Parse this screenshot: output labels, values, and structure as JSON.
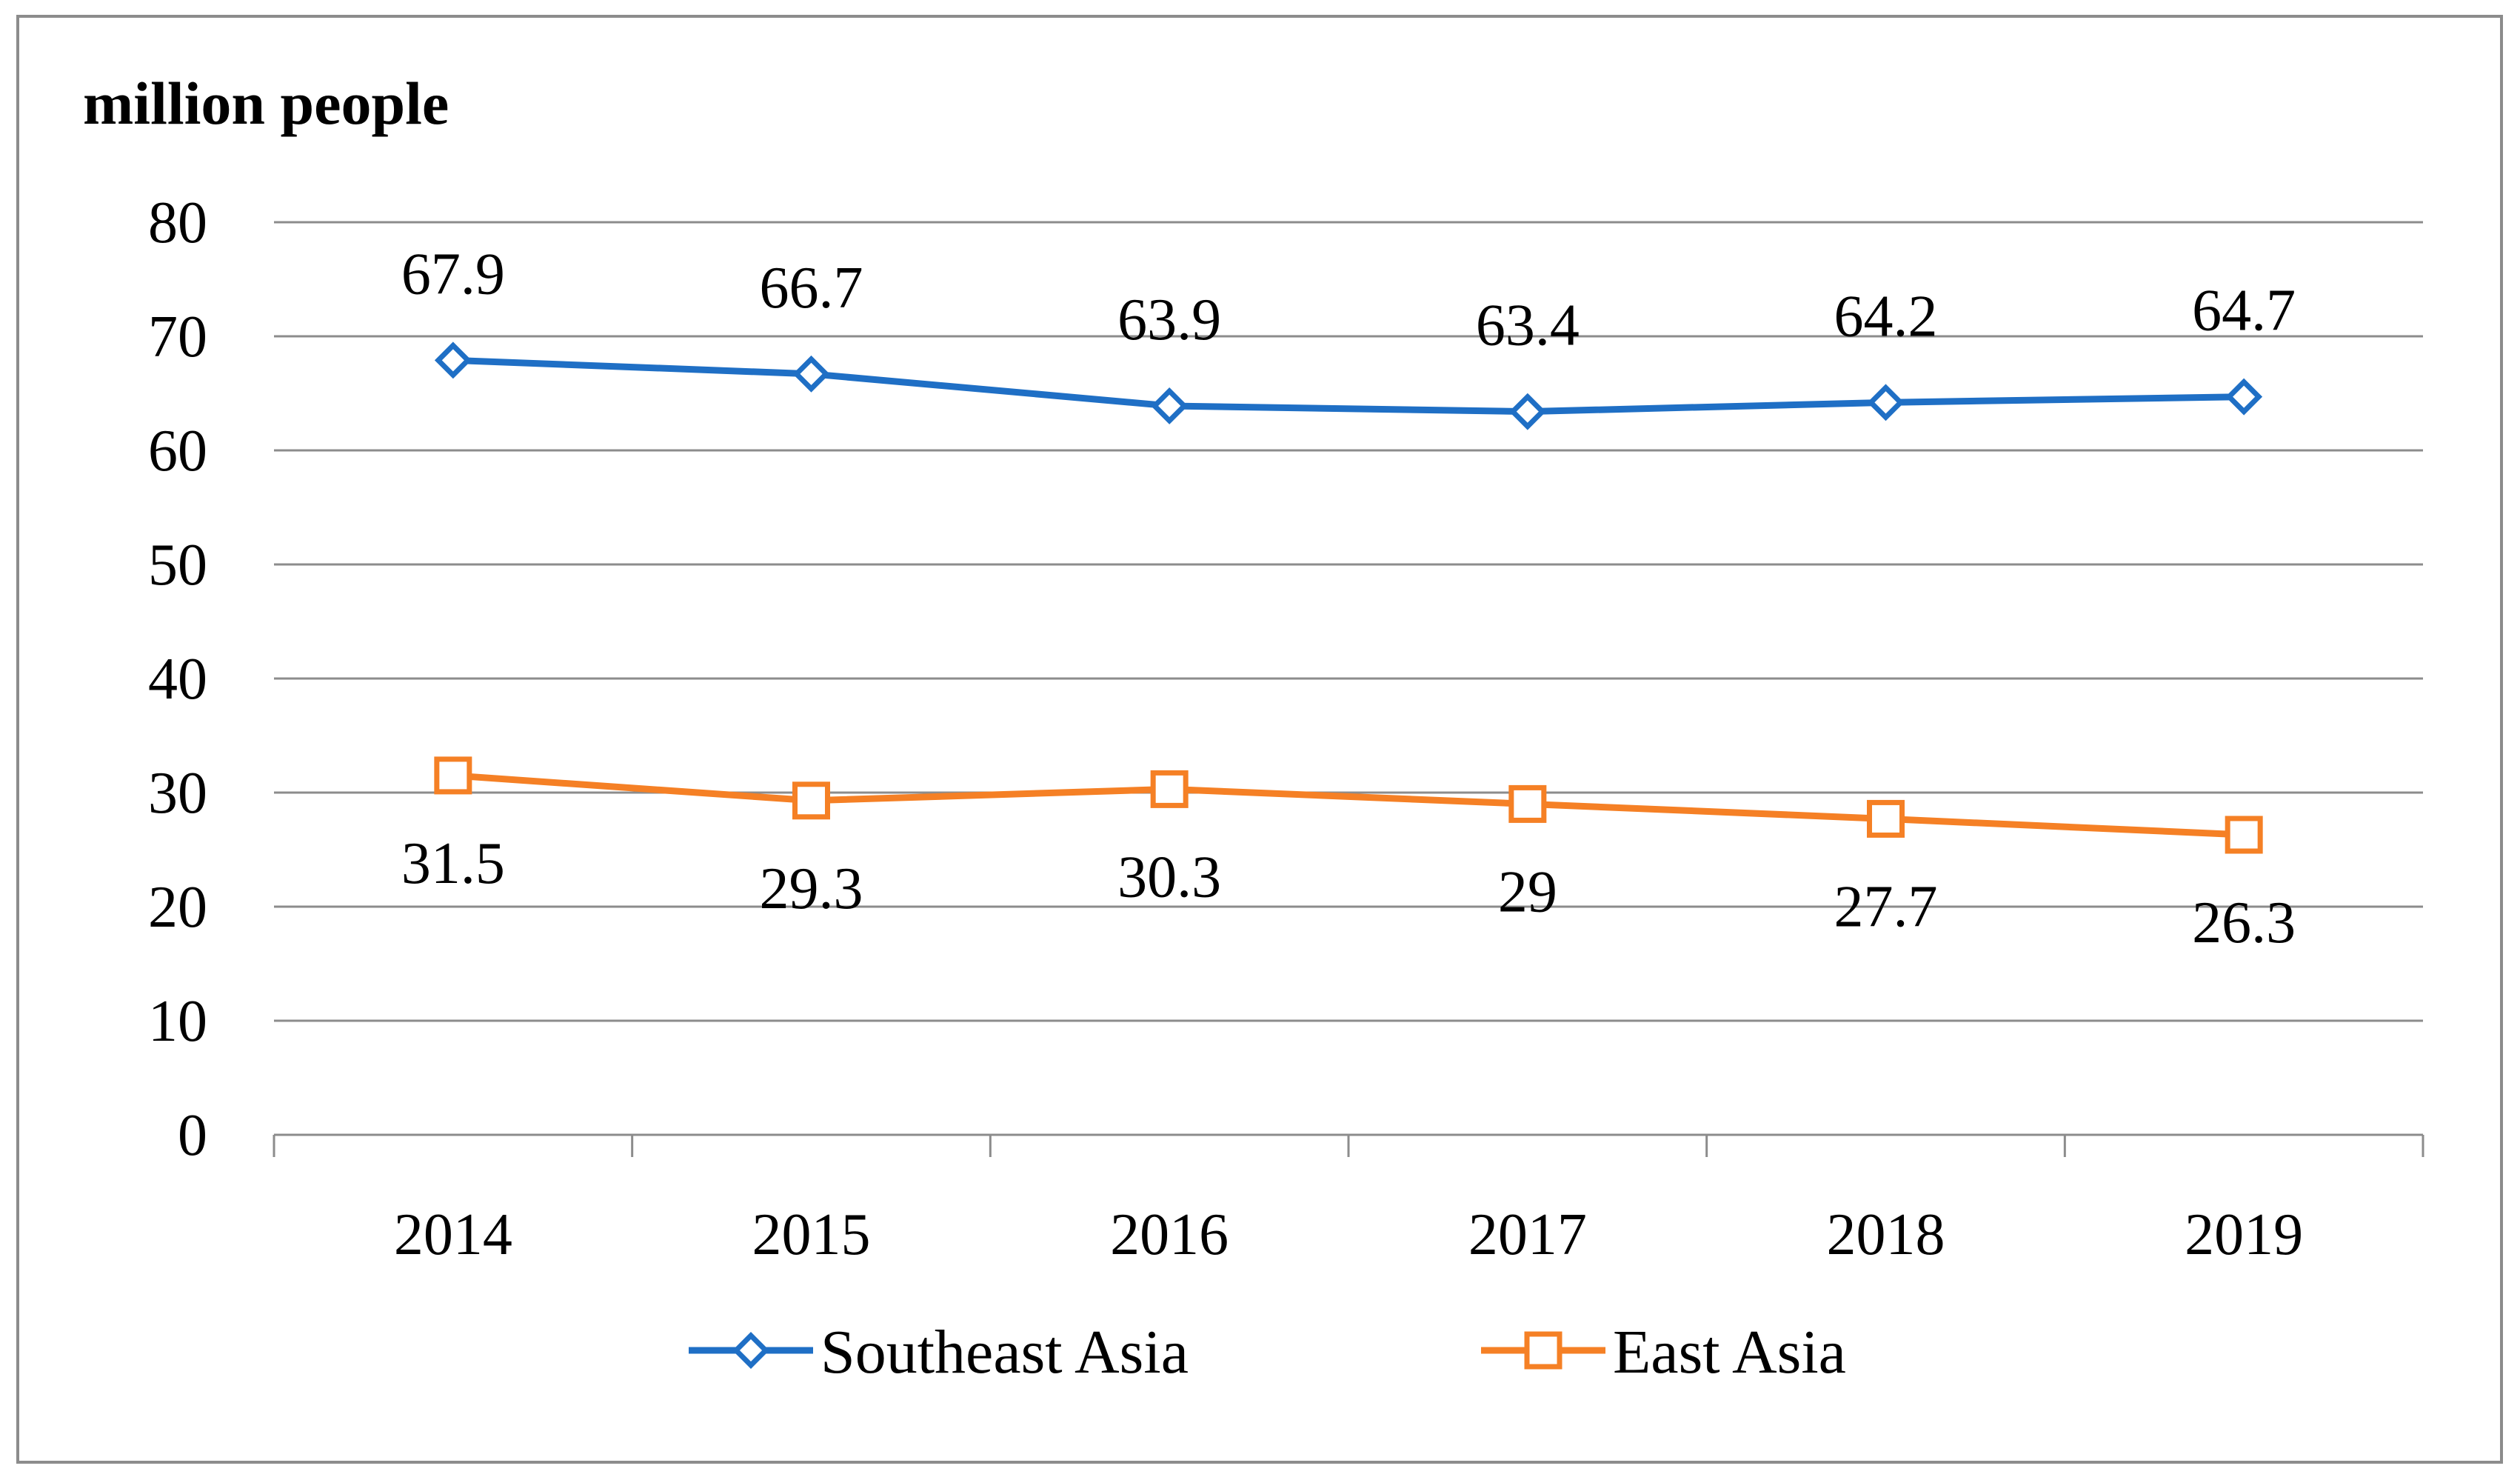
{
  "chart_data": {
    "type": "line",
    "title": "",
    "xlabel": "",
    "ylabel": "million people",
    "categories": [
      "2014",
      "2015",
      "2016",
      "2017",
      "2018",
      "2019"
    ],
    "ylim": [
      0,
      80
    ],
    "yticks": [
      "0",
      "10",
      "20",
      "30",
      "40",
      "50",
      "60",
      "70",
      "80"
    ],
    "grid": true,
    "legend_position": "bottom",
    "series": [
      {
        "name": "Southeast Asia",
        "values": [
          67.9,
          66.7,
          63.9,
          63.4,
          64.2,
          64.7
        ],
        "labels": [
          "67.9",
          "66.7",
          "63.9",
          "63.4",
          "64.2",
          "64.7"
        ],
        "color": "#1f6fc5",
        "marker": "diamond"
      },
      {
        "name": "East Asia",
        "values": [
          31.5,
          29.3,
          30.3,
          29,
          27.7,
          26.3
        ],
        "labels": [
          "31.5",
          "29.3",
          "30.3",
          "29",
          "27.7",
          "26.3"
        ],
        "color": "#f58025",
        "marker": "square"
      }
    ]
  }
}
